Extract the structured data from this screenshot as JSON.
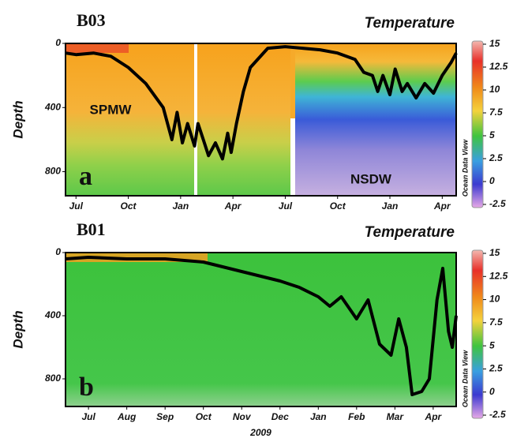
{
  "chart_data": [
    {
      "type": "line",
      "title": "B03",
      "subtitle": "Temperature",
      "ylabel": "Depth",
      "panel_label": "a",
      "annotations": [
        "SPMW",
        "NSDW"
      ],
      "xlim": [
        -0.6,
        21.8
      ],
      "xticks": [
        {
          "value": 0,
          "label": "Jul"
        },
        {
          "value": 3,
          "label": "Oct"
        },
        {
          "value": 6,
          "label": "Jan"
        },
        {
          "value": 9,
          "label": "Apr"
        },
        {
          "value": 12,
          "label": "Jul"
        },
        {
          "value": 15,
          "label": "Oct"
        },
        {
          "value": 18,
          "label": "Jan"
        },
        {
          "value": 21,
          "label": "Apr"
        }
      ],
      "ylim": [
        0,
        950
      ],
      "yticks": [
        0,
        400,
        800
      ],
      "y_inverted": true,
      "x": [
        -0.6,
        0,
        1,
        2,
        3,
        4,
        5,
        5.5,
        5.8,
        6.1,
        6.4,
        6.8,
        7,
        7.3,
        7.6,
        8,
        8.4,
        8.7,
        8.9,
        9.2,
        9.6,
        10,
        11,
        12,
        13,
        14,
        15,
        16,
        16.5,
        17,
        17.3,
        17.6,
        18,
        18.3,
        18.7,
        19,
        19.5,
        20,
        20.5,
        21,
        21.5,
        21.8
      ],
      "series": [
        {
          "color": "#000000",
          "values": [
            60,
            70,
            60,
            80,
            150,
            250,
            400,
            600,
            430,
            620,
            500,
            640,
            500,
            600,
            700,
            620,
            720,
            560,
            680,
            500,
            300,
            150,
            30,
            20,
            30,
            40,
            60,
            100,
            180,
            200,
            300,
            200,
            320,
            160,
            300,
            250,
            340,
            250,
            310,
            200,
            120,
            60
          ]
        }
      ],
      "colorbar": {
        "label": "Ocean Data View",
        "lim": [
          -2.5,
          15
        ],
        "ticks": [
          15,
          12.5,
          10,
          7.5,
          5,
          2.5,
          0,
          -2.5
        ]
      }
    },
    {
      "type": "line",
      "title": "B01",
      "subtitle": "Temperature",
      "ylabel": "Depth",
      "panel_label": "b",
      "xlabel": "2009",
      "annotations": [],
      "xlim": [
        -0.6,
        9.6
      ],
      "xticks": [
        {
          "value": 0,
          "label": "Jul"
        },
        {
          "value": 1,
          "label": "Aug"
        },
        {
          "value": 2,
          "label": "Sep"
        },
        {
          "value": 3,
          "label": "Oct"
        },
        {
          "value": 4,
          "label": "Nov"
        },
        {
          "value": 5,
          "label": "Dec"
        },
        {
          "value": 6,
          "label": "Jan"
        },
        {
          "value": 7,
          "label": "Feb"
        },
        {
          "value": 8,
          "label": "Mar"
        },
        {
          "value": 9,
          "label": "Apr"
        }
      ],
      "ylim": [
        0,
        975
      ],
      "yticks": [
        0,
        400,
        800
      ],
      "y_inverted": true,
      "x": [
        -0.6,
        0,
        1,
        2,
        3,
        3.5,
        4,
        5,
        5.5,
        6,
        6.3,
        6.6,
        7,
        7.3,
        7.6,
        7.9,
        8.1,
        8.3,
        8.45,
        8.7,
        8.9,
        9.1,
        9.25,
        9.4,
        9.5,
        9.6
      ],
      "series": [
        {
          "color": "#000000",
          "values": [
            40,
            30,
            40,
            40,
            60,
            90,
            120,
            180,
            220,
            280,
            340,
            280,
            420,
            300,
            580,
            650,
            420,
            600,
            900,
            880,
            800,
            300,
            100,
            500,
            600,
            400
          ]
        }
      ],
      "colorbar": {
        "label": "Ocean Data View",
        "lim": [
          -2.5,
          15
        ],
        "ticks": [
          15,
          12.5,
          10,
          7.5,
          5,
          2.5,
          0,
          -2.5
        ]
      }
    }
  ]
}
